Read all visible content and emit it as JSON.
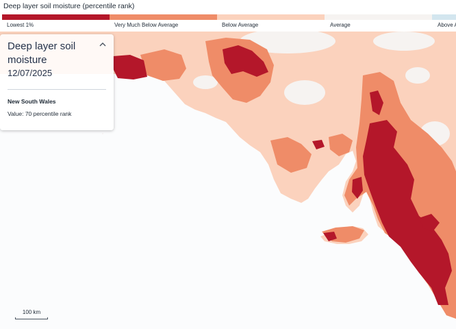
{
  "legend": {
    "title": "Deep layer soil moisture (percentile rank)",
    "classes": [
      {
        "label": "Lowest 1%",
        "color": "#b4172a"
      },
      {
        "label": "Very Much Below Average",
        "color": "#ef8c68"
      },
      {
        "label": "Below Average",
        "color": "#fbd2bd"
      },
      {
        "label": "Average",
        "color": "#f6f3f1"
      },
      {
        "label": "Above A",
        "color": "#d3e6ef"
      }
    ]
  },
  "panel": {
    "title": "Deep layer soil moisture",
    "date": "12/07/2025",
    "region": "New South Wales",
    "value": "Value: 70 percentile rank"
  },
  "map": {
    "colors": {
      "lowest": "#b4172a",
      "very_much_below": "#ef8c68",
      "below": "#fbd2bd",
      "average": "#f6f3f1",
      "sea": "#fbfcfd"
    }
  },
  "scale": {
    "label": "100 km"
  }
}
